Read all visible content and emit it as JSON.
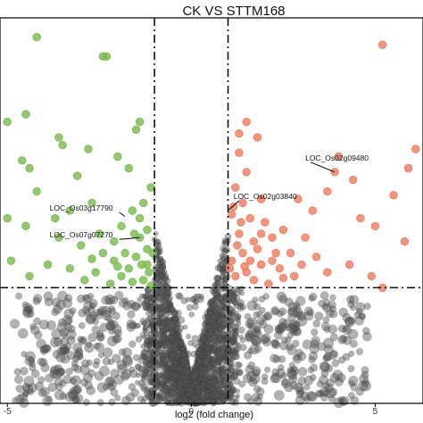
{
  "chart_data": {
    "type": "scatter",
    "title": "CK VS STTM168",
    "xlabel": "log2 (fold change)",
    "ylabel": "",
    "xlim": [
      -5.2,
      6.3
    ],
    "ylim": [
      0,
      10
    ],
    "x_ticks": [
      "-5",
      "0",
      "5"
    ],
    "x_tick_values": [
      -5,
      0,
      5
    ],
    "thresholds": {
      "fc_lines": [
        -1,
        1
      ],
      "p_line": 3.0
    },
    "colors": {
      "down": "#79b94e",
      "up": "#ec7c5f",
      "ns": "#555555",
      "frame": "#000000"
    },
    "series": [
      {
        "key": "down",
        "points": [
          [
            -4.2,
            9.5
          ],
          [
            -2.3,
            9.0
          ],
          [
            -2.4,
            9.0
          ],
          [
            -4.5,
            7.5
          ],
          [
            -5.0,
            7.3
          ],
          [
            -3.6,
            6.9
          ],
          [
            -3.5,
            6.7
          ],
          [
            -2.8,
            6.6
          ],
          [
            -1.4,
            7.3
          ],
          [
            -1.5,
            7.1
          ],
          [
            -2.0,
            6.4
          ],
          [
            -1.7,
            6.1
          ],
          [
            -4.6,
            6.3
          ],
          [
            -4.4,
            6.1
          ],
          [
            -3.1,
            5.9
          ],
          [
            -4.2,
            5.5
          ],
          [
            -2.7,
            5.2
          ],
          [
            -3.3,
            5.0
          ],
          [
            -5.0,
            4.8
          ],
          [
            -4.5,
            4.6
          ],
          [
            -3.7,
            4.8
          ],
          [
            -2.5,
            4.4
          ],
          [
            -2.1,
            4.2
          ],
          [
            -1.4,
            4.3
          ],
          [
            -1.2,
            4.5
          ],
          [
            -4.9,
            3.7
          ],
          [
            -4.4,
            3.3
          ],
          [
            -3.9,
            3.6
          ],
          [
            -3.3,
            3.5
          ],
          [
            -2.9,
            3.2
          ],
          [
            -2.6,
            3.4
          ],
          [
            -2.2,
            3.1
          ],
          [
            -1.9,
            3.3
          ],
          [
            -1.6,
            3.15
          ],
          [
            -1.3,
            3.2
          ],
          [
            -1.1,
            3.05
          ],
          [
            -1.2,
            3.6
          ],
          [
            -1.5,
            3.8
          ],
          [
            -1.8,
            3.9
          ],
          [
            -2.1,
            3.7
          ],
          [
            -1.4,
            4.8
          ],
          [
            -1.3,
            5.2
          ],
          [
            -1.1,
            5.6
          ],
          [
            -1.6,
            5.0
          ],
          [
            -1.9,
            4.6
          ],
          [
            -2.4,
            3.9
          ],
          [
            -3.0,
            4.1
          ],
          [
            -1.2,
            4.0
          ],
          [
            -1.7,
            3.5
          ],
          [
            -1.15,
            3.4
          ],
          [
            -2.0,
            3.55
          ],
          [
            -2.7,
            3.75
          ],
          [
            -1.35,
            3.6
          ],
          [
            -1.05,
            3.9
          ],
          [
            -3.6,
            4.3
          ],
          [
            -1.55,
            4.4
          ]
        ]
      },
      {
        "key": "up",
        "points": [
          [
            5.2,
            9.3
          ],
          [
            4.0,
            6.4
          ],
          [
            3.9,
            6.0
          ],
          [
            6.1,
            6.6
          ],
          [
            5.9,
            6.1
          ],
          [
            4.4,
            5.8
          ],
          [
            3.7,
            5.5
          ],
          [
            5.5,
            5.4
          ],
          [
            2.9,
            5.3
          ],
          [
            3.3,
            5.0
          ],
          [
            4.6,
            4.8
          ],
          [
            5.0,
            4.6
          ],
          [
            5.8,
            4.2
          ],
          [
            3.1,
            4.3
          ],
          [
            2.5,
            4.5
          ],
          [
            1.9,
            5.3
          ],
          [
            1.5,
            6.0
          ],
          [
            1.3,
            6.5
          ],
          [
            1.5,
            7.3
          ],
          [
            1.3,
            7.0
          ],
          [
            1.8,
            6.9
          ],
          [
            1.2,
            5.6
          ],
          [
            1.4,
            5.2
          ],
          [
            1.6,
            4.8
          ],
          [
            2.0,
            4.7
          ],
          [
            2.2,
            4.3
          ],
          [
            1.7,
            4.2
          ],
          [
            1.3,
            4.4
          ],
          [
            1.1,
            4.9
          ],
          [
            2.7,
            3.9
          ],
          [
            3.4,
            3.8
          ],
          [
            4.3,
            3.6
          ],
          [
            3.7,
            3.4
          ],
          [
            2.4,
            3.5
          ],
          [
            1.9,
            3.6
          ],
          [
            1.5,
            3.4
          ],
          [
            1.2,
            3.3
          ],
          [
            1.1,
            3.7
          ],
          [
            1.7,
            3.2
          ],
          [
            2.1,
            3.1
          ],
          [
            2.8,
            3.3
          ],
          [
            4.9,
            3.3
          ],
          [
            5.2,
            3.0
          ],
          [
            1.4,
            3.9
          ],
          [
            1.8,
            4.0
          ],
          [
            2.3,
            3.9
          ],
          [
            1.25,
            4.1
          ],
          [
            1.6,
            3.7
          ],
          [
            1.05,
            3.5
          ],
          [
            2.5,
            3.25
          ],
          [
            1.35,
            4.7
          ],
          [
            1.9,
            4.4
          ],
          [
            1.15,
            5.1
          ],
          [
            2.2,
            3.7
          ],
          [
            3.0,
            3.6
          ],
          [
            1.45,
            3.55
          ]
        ]
      }
    ],
    "annotations": [
      {
        "text": "LOC_Os02g09480",
        "point": [
          3.9,
          6.0
        ],
        "label_at": [
          3.1,
          6.3
        ]
      },
      {
        "text": "LOC_Os02g03840",
        "point": [
          1.0,
          5.0
        ],
        "label_at": [
          1.15,
          5.3
        ]
      },
      {
        "text": "LOC_Os03g17790",
        "point": [
          -1.8,
          4.85
        ],
        "label_at": [
          -3.85,
          5.0
        ]
      },
      {
        "text": "LOC_Os07g07270",
        "point": [
          -1.4,
          4.3
        ],
        "label_at": [
          -3.85,
          4.3
        ]
      }
    ]
  }
}
